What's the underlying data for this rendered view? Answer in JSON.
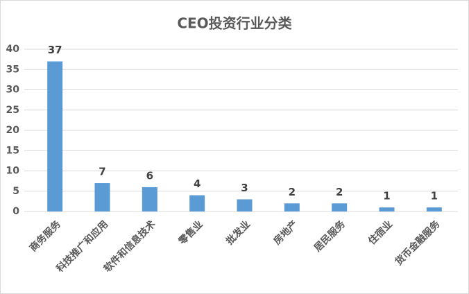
{
  "chart_data": {
    "type": "bar",
    "title": "CEO投资行业分类",
    "categories": [
      "商务服务",
      "科技推广和应用",
      "软件和信息技术",
      "零售业",
      "批发业",
      "房地产",
      "居民服务",
      "住宿业",
      "货币金融服务"
    ],
    "values": [
      37,
      7,
      6,
      4,
      3,
      2,
      2,
      1,
      1
    ],
    "color": "#5b9bd5",
    "ylim": [
      0,
      40
    ],
    "yticks": [
      0,
      5,
      10,
      15,
      20,
      25,
      30,
      35,
      40
    ],
    "grid": true,
    "data_labels": true
  }
}
